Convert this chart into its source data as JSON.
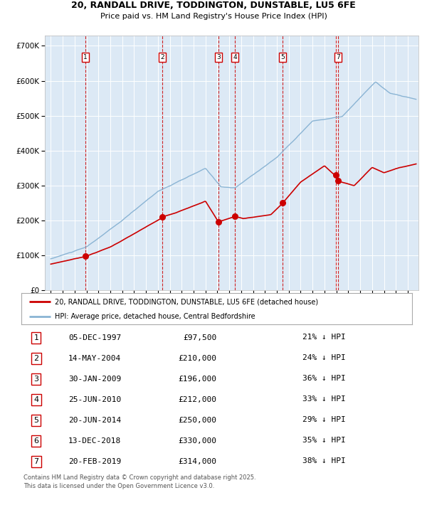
{
  "title_line1": "20, RANDALL DRIVE, TODDINGTON, DUNSTABLE, LU5 6FE",
  "title_line2": "Price paid vs. HM Land Registry's House Price Index (HPI)",
  "bg_color": "#dce9f5",
  "red_line_color": "#cc0000",
  "blue_line_color": "#8ab4d4",
  "vline_color": "#cc0000",
  "yticks": [
    0,
    100000,
    200000,
    300000,
    400000,
    500000,
    600000,
    700000
  ],
  "ytick_labels": [
    "£0",
    "£100K",
    "£200K",
    "£300K",
    "£400K",
    "£500K",
    "£600K",
    "£700K"
  ],
  "xlim_start": 1994.5,
  "xlim_end": 2025.9,
  "ylim_min": 0,
  "ylim_max": 730000,
  "sale_dates": [
    1997.92,
    2004.37,
    2009.08,
    2010.48,
    2014.47,
    2018.95,
    2019.13
  ],
  "sale_prices": [
    97500,
    210000,
    196000,
    212000,
    250000,
    330000,
    314000
  ],
  "sale_labels": [
    "1",
    "2",
    "3",
    "4",
    "5",
    "6",
    "7"
  ],
  "shown_vline_indices": [
    0,
    1,
    2,
    3,
    4,
    5,
    6
  ],
  "shown_box_indices": [
    0,
    1,
    2,
    3,
    4,
    6
  ],
  "legend_line1": "20, RANDALL DRIVE, TODDINGTON, DUNSTABLE, LU5 6FE (detached house)",
  "legend_line2": "HPI: Average price, detached house, Central Bedfordshire",
  "table_rows": [
    [
      "1",
      "05-DEC-1997",
      "£97,500",
      "21% ↓ HPI"
    ],
    [
      "2",
      "14-MAY-2004",
      "£210,000",
      "24% ↓ HPI"
    ],
    [
      "3",
      "30-JAN-2009",
      "£196,000",
      "36% ↓ HPI"
    ],
    [
      "4",
      "25-JUN-2010",
      "£212,000",
      "33% ↓ HPI"
    ],
    [
      "5",
      "20-JUN-2014",
      "£250,000",
      "29% ↓ HPI"
    ],
    [
      "6",
      "13-DEC-2018",
      "£330,000",
      "35% ↓ HPI"
    ],
    [
      "7",
      "20-FEB-2019",
      "£314,000",
      "38% ↓ HPI"
    ]
  ],
  "footer": "Contains HM Land Registry data © Crown copyright and database right 2025.\nThis data is licensed under the Open Government Licence v3.0."
}
